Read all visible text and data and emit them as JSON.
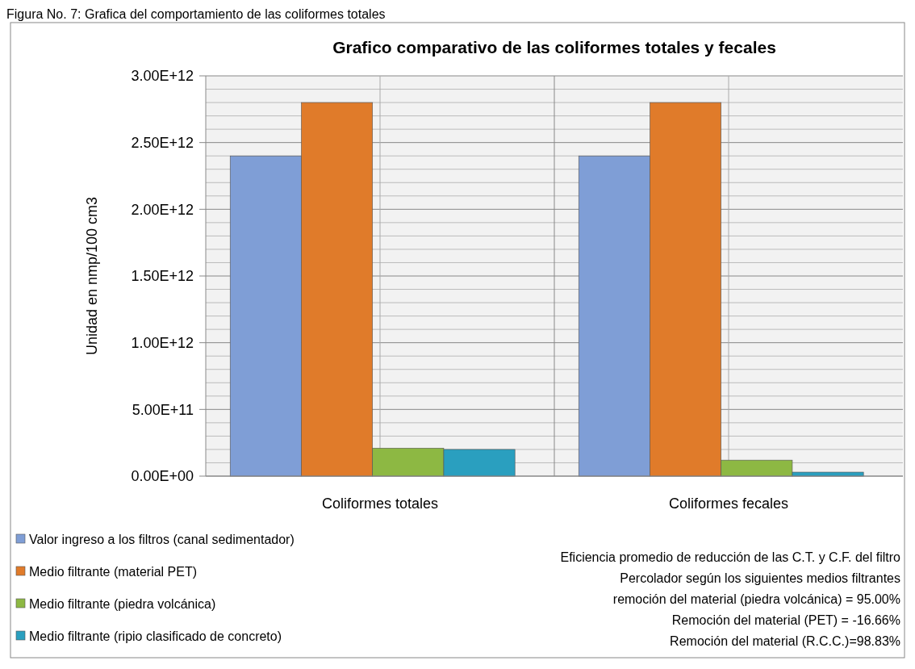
{
  "chart_data": {
    "type": "bar",
    "title": "Grafico comparativo de las coliformes totales y fecales",
    "ylabel": "Unidad en nmp/100 cm3",
    "categories": [
      "Coliformes totales",
      "Coliformes fecales"
    ],
    "series": [
      {
        "name": "Valor ingreso a los filtros (canal sedimentador)",
        "color": "#7f9ed6",
        "values": [
          2400000000000.0,
          2400000000000.0
        ]
      },
      {
        "name": "Medio filtrante (material PET)",
        "color": "#e07b2a",
        "values": [
          2800000000000.0,
          2800000000000.0
        ]
      },
      {
        "name": "Medio filtrante (piedra volcánica)",
        "color": "#8db843",
        "values": [
          210000000000.0,
          120000000000.0
        ]
      },
      {
        "name": "Medio filtrante (ripio clasificado de concreto)",
        "color": "#2a9fbf",
        "values": [
          200000000000.0,
          30000000000.0
        ]
      }
    ],
    "ylim": [
      0,
      3000000000000.0
    ],
    "yticks": [
      {
        "value": 0,
        "label": "0.00E+00"
      },
      {
        "value": 100000000000.0,
        "label": null
      },
      {
        "value": 200000000000.0,
        "label": null
      },
      {
        "value": 300000000000.0,
        "label": null
      },
      {
        "value": 400000000000.0,
        "label": null
      },
      {
        "value": 500000000000.0,
        "label": "5.00E+11"
      },
      {
        "value": 600000000000.0,
        "label": null
      },
      {
        "value": 700000000000.0,
        "label": null
      },
      {
        "value": 800000000000.0,
        "label": null
      },
      {
        "value": 900000000000.0,
        "label": null
      },
      {
        "value": 1000000000000.0,
        "label": "1.00E+12"
      },
      {
        "value": 1100000000000.0,
        "label": null
      },
      {
        "value": 1200000000000.0,
        "label": null
      },
      {
        "value": 1300000000000.0,
        "label": null
      },
      {
        "value": 1400000000000.0,
        "label": null
      },
      {
        "value": 1500000000000.0,
        "label": "1.50E+12"
      },
      {
        "value": 1600000000000.0,
        "label": null
      },
      {
        "value": 1700000000000.0,
        "label": null
      },
      {
        "value": 1800000000000.0,
        "label": null
      },
      {
        "value": 1900000000000.0,
        "label": null
      },
      {
        "value": 2000000000000.0,
        "label": "2.00E+12"
      },
      {
        "value": 2100000000000.0,
        "label": null
      },
      {
        "value": 2200000000000.0,
        "label": null
      },
      {
        "value": 2300000000000.0,
        "label": null
      },
      {
        "value": 2400000000000.0,
        "label": null
      },
      {
        "value": 2500000000000.0,
        "label": "2.50E+12"
      },
      {
        "value": 2600000000000.0,
        "label": null
      },
      {
        "value": 2700000000000.0,
        "label": null
      },
      {
        "value": 2800000000000.0,
        "label": null
      },
      {
        "value": 2900000000000.0,
        "label": null
      },
      {
        "value": 3000000000000.0,
        "label": "3.00E+12"
      }
    ],
    "grid": true,
    "legend": "bottom left",
    "annotations": [
      "Figura No. 7: Grafica del comportamiento de las coliformes totales",
      "Eficiencia promedio de reducción de las C.T. y C.F. del filtro",
      "Percolador según los siguientes medios filtrantes",
      "remoción del material (piedra volcánica) =  95.00%",
      "Remoción del material (PET) = -16.66%",
      "Remoción del material (R.C.C.)=98.83%"
    ]
  }
}
